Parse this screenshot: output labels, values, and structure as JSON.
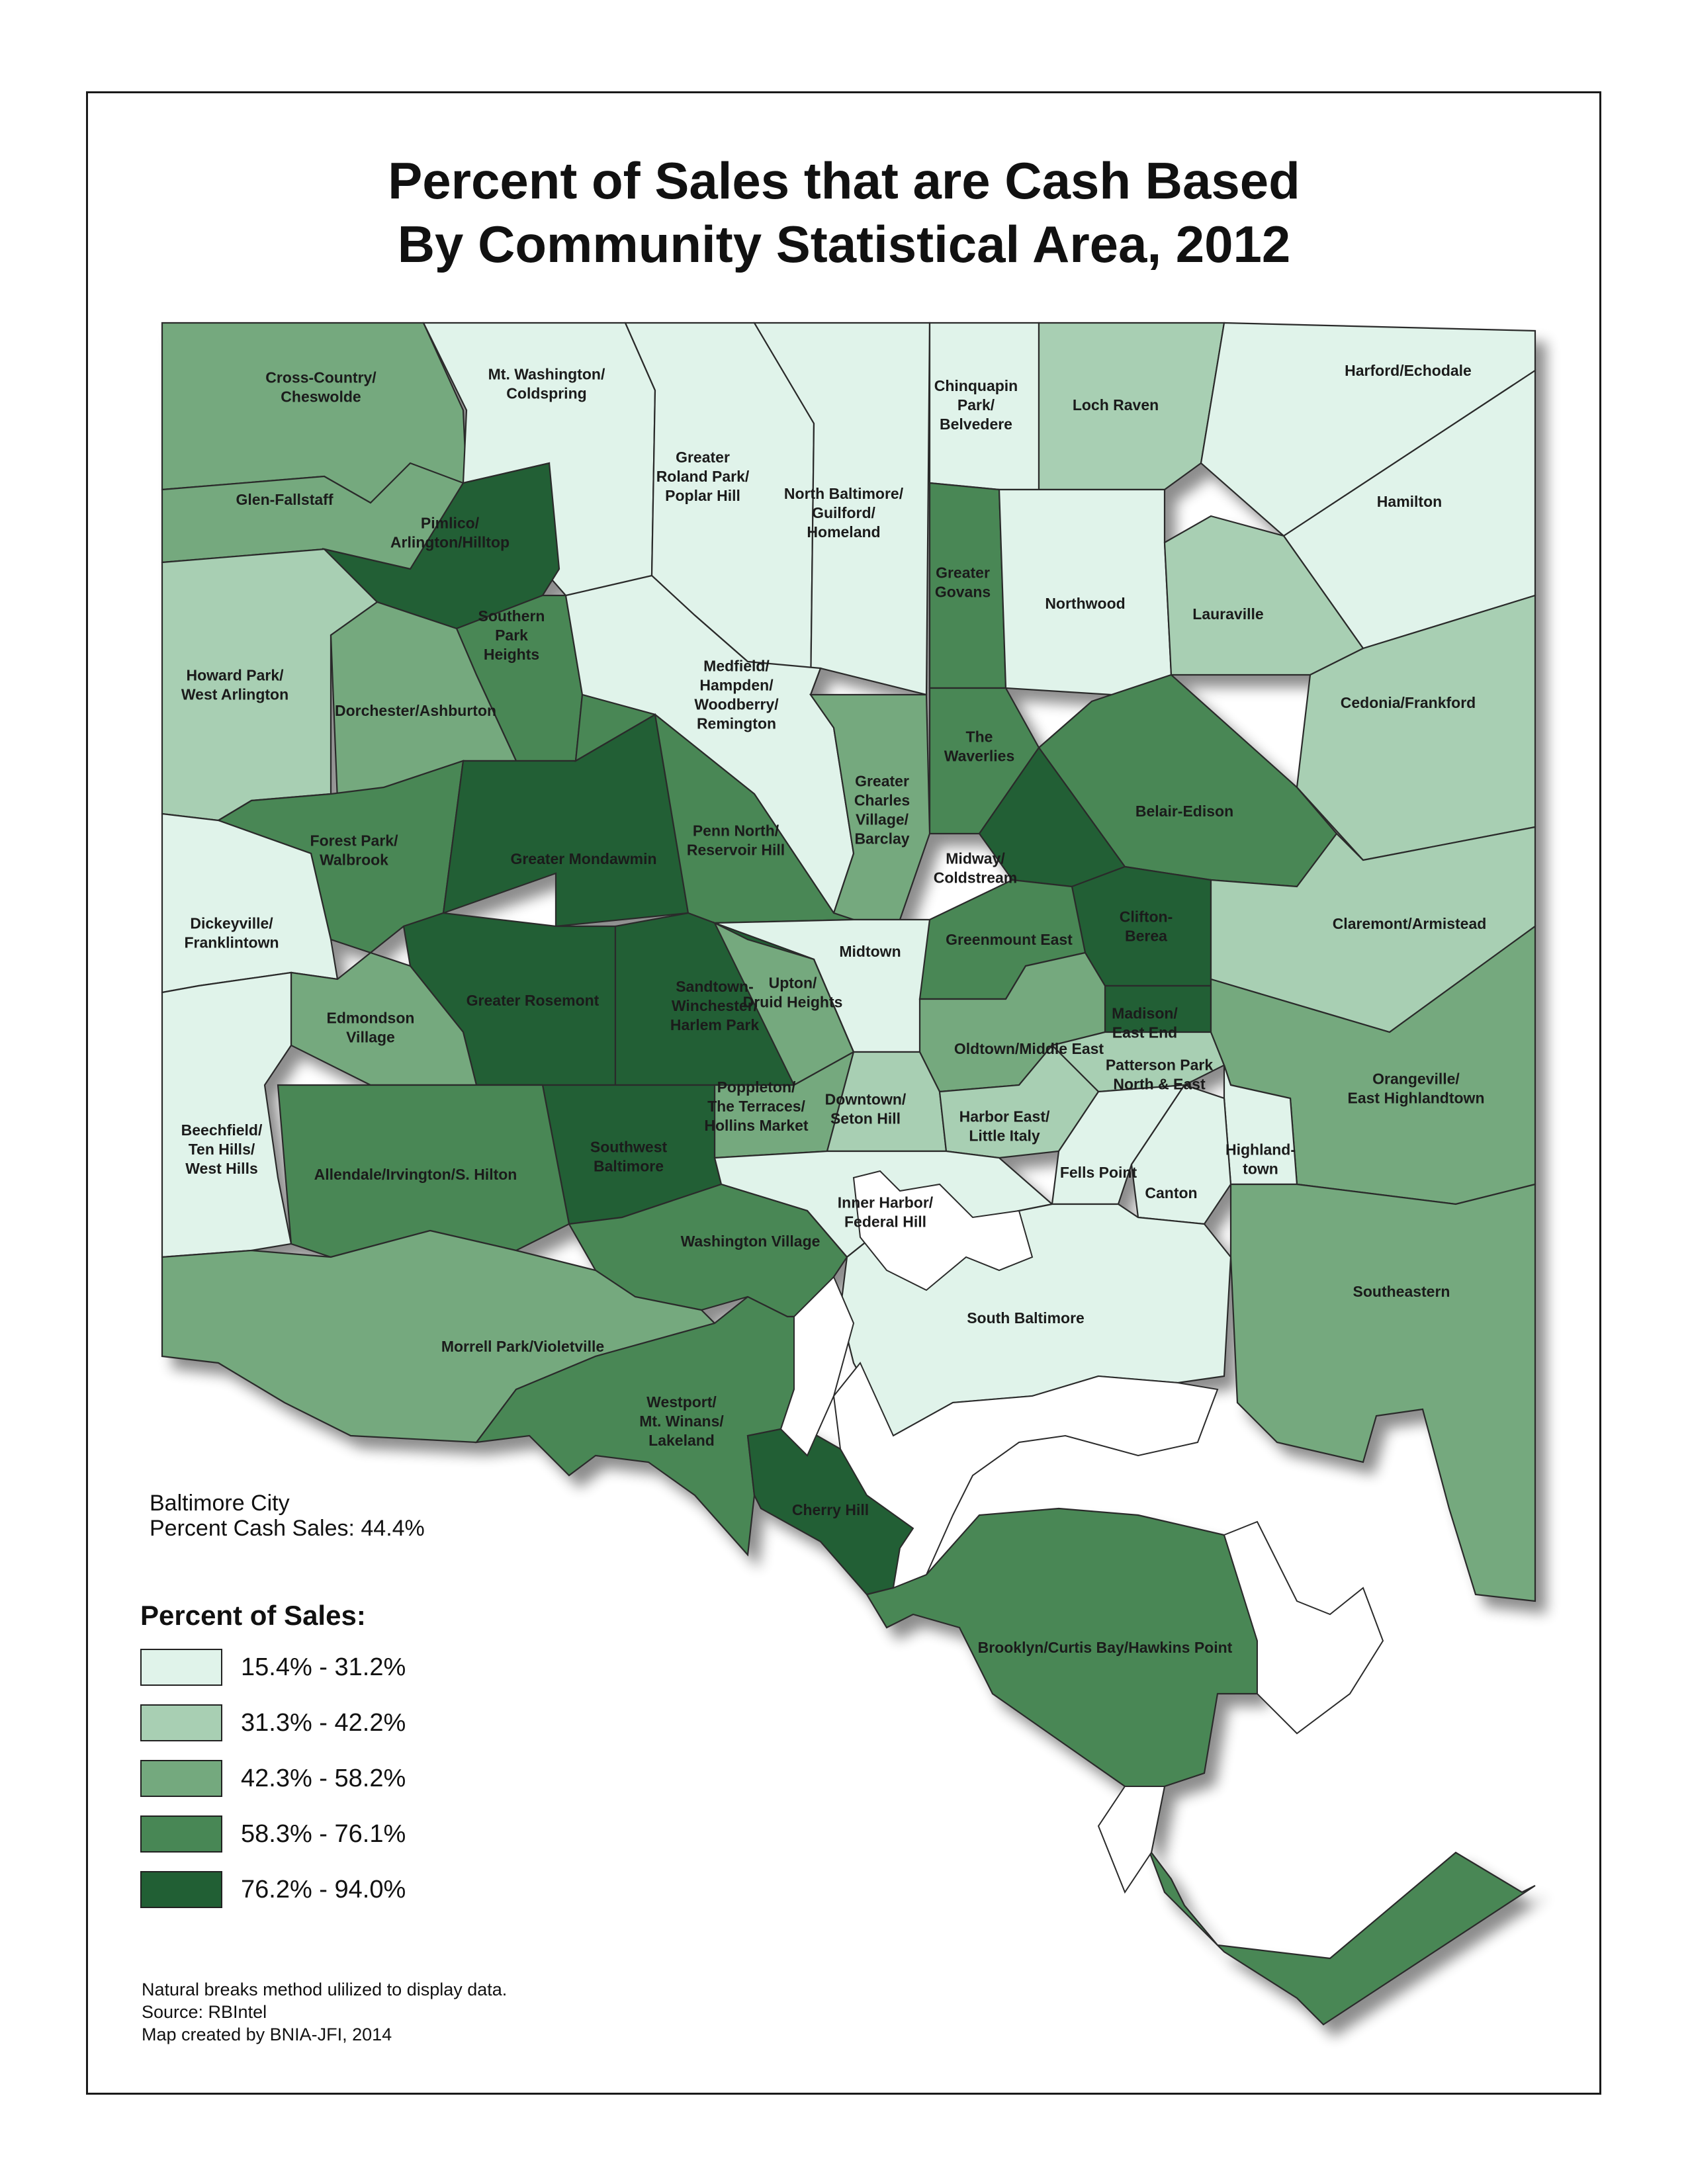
{
  "title": {
    "line1": "Percent of Sales that are Cash Based",
    "line2": "By Community Statistical Area, 2012"
  },
  "colors": {
    "c1": "#e0f3ea",
    "c2": "#a8cfb3",
    "c3": "#74a97e",
    "c4": "#488755",
    "c5": "#215f34",
    "water": "#ffffff",
    "boundary": "#2b2b2b"
  },
  "areas": [
    {
      "name": "Cross-Country/\nCheswolde",
      "class": 3
    },
    {
      "name": "Mt. Washington/\nColdspring",
      "class": 1
    },
    {
      "name": "Greater\nRoland Park/\nPoplar Hill",
      "class": 1
    },
    {
      "name": "North Baltimore/\nGuilford/\nHomeland",
      "class": 1
    },
    {
      "name": "Chinquapin\nPark/\nBelvedere",
      "class": 1
    },
    {
      "name": "Loch Raven",
      "class": 2
    },
    {
      "name": "Harford/Echodale",
      "class": 1
    },
    {
      "name": "Hamilton",
      "class": 1
    },
    {
      "name": "Glen-Fallstaff",
      "class": 3
    },
    {
      "name": "Pimlico/\nArlington/Hilltop",
      "class": 5
    },
    {
      "name": "Southern\nPark\nHeights",
      "class": 4
    },
    {
      "name": "Greater\nGovans",
      "class": 4
    },
    {
      "name": "Northwood",
      "class": 1
    },
    {
      "name": "Lauraville",
      "class": 2
    },
    {
      "name": "Howard Park/\nWest Arlington",
      "class": 2
    },
    {
      "name": "Dorchester/Ashburton",
      "class": 3
    },
    {
      "name": "Medfield/\nHampden/\nWoodberry/\nRemington",
      "class": 1
    },
    {
      "name": "Cedonia/Frankford",
      "class": 2
    },
    {
      "name": "The\nWaverlies",
      "class": 4
    },
    {
      "name": "Greater\nCharles\nVillage/\nBarclay",
      "class": 3
    },
    {
      "name": "Forest Park/\nWalbrook",
      "class": 4
    },
    {
      "name": "Greater Mondawmin",
      "class": 5
    },
    {
      "name": "Penn North/\nReservoir Hill",
      "class": 4
    },
    {
      "name": "Belair-Edison",
      "class": 4
    },
    {
      "name": "Midway/\nColdstream",
      "class": 5
    },
    {
      "name": "Dickeyville/\nFranklintown",
      "class": 1
    },
    {
      "name": "Clifton-\nBerea",
      "class": 5
    },
    {
      "name": "Claremont/Armistead",
      "class": 2
    },
    {
      "name": "Midtown",
      "class": 1
    },
    {
      "name": "Greenmount East",
      "class": 4
    },
    {
      "name": "Greater Rosemont",
      "class": 5
    },
    {
      "name": "Sandtown-\nWinchester/\nHarlem Park",
      "class": 5
    },
    {
      "name": "Upton/\nDruid Heights",
      "class": 3
    },
    {
      "name": "Edmondson\nVillage",
      "class": 3
    },
    {
      "name": "Madison/\nEast End",
      "class": 5
    },
    {
      "name": "Oldtown/Middle East",
      "class": 3
    },
    {
      "name": "Patterson Park\nNorth & East",
      "class": 2
    },
    {
      "name": "Orangeville/\nEast Highlandtown",
      "class": 3
    },
    {
      "name": "Poppleton/\nThe Terraces/\nHollins Market",
      "class": 3
    },
    {
      "name": "Downtown/\nSeton Hill",
      "class": 2
    },
    {
      "name": "Harbor East/\nLittle Italy",
      "class": 2
    },
    {
      "name": "Beechfield/\nTen Hills/\nWest Hills",
      "class": 1
    },
    {
      "name": "Southwest\nBaltimore",
      "class": 5
    },
    {
      "name": "Allendale/Irvington/S. Hilton",
      "class": 4
    },
    {
      "name": "Highland-\ntown",
      "class": 1
    },
    {
      "name": "Fells Point",
      "class": 1
    },
    {
      "name": "Canton",
      "class": 1
    },
    {
      "name": "Inner Harbor/\nFederal Hill",
      "class": 1
    },
    {
      "name": "Washington Village",
      "class": 4
    },
    {
      "name": "Southeastern",
      "class": 3
    },
    {
      "name": "South Baltimore",
      "class": 1
    },
    {
      "name": "Morrell Park/Violetville",
      "class": 3
    },
    {
      "name": "Westport/\nMt. Winans/\nLakeland",
      "class": 4
    },
    {
      "name": "Cherry Hill",
      "class": 5
    },
    {
      "name": "Brooklyn/Curtis Bay/Hawkins Point",
      "class": 4
    }
  ],
  "citywide": {
    "line1": "Baltimore City",
    "line2": "Percent Cash Sales: 44.4%"
  },
  "legend": {
    "title": "Percent of Sales:",
    "items": [
      {
        "label": "15.4% - 31.2%",
        "color": "#e0f3ea"
      },
      {
        "label": "31.3% - 42.2%",
        "color": "#a8cfb3"
      },
      {
        "label": "42.3% - 58.2%",
        "color": "#74a97e"
      },
      {
        "label": "58.3% - 76.1%",
        "color": "#488755"
      },
      {
        "label": "76.2% - 94.0%",
        "color": "#215f34"
      }
    ]
  },
  "notes": {
    "line1": "Natural breaks method ulilized to display data.",
    "line2": "Source: RBIntel",
    "line3": "Map created by BNIA-JFI, 2014"
  }
}
